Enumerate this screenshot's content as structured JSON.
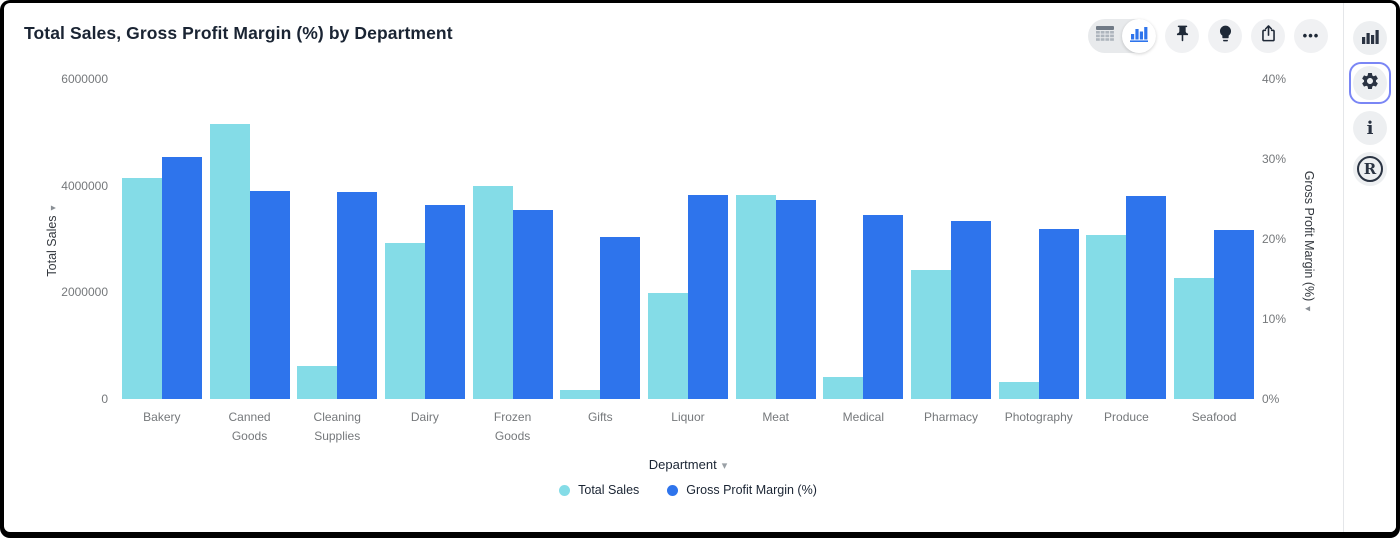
{
  "header": {
    "title": "Total Sales, Gross Profit Margin (%) by Department"
  },
  "toolbar": {
    "view_toggle": {
      "options": [
        "table-view",
        "chart-view"
      ],
      "selected": "chart-view"
    },
    "buttons": [
      "pin",
      "explain",
      "share",
      "more-options"
    ],
    "ellipsis_glyph": "•••"
  },
  "sidebar": {
    "buttons": [
      "chart-panel",
      "settings-panel",
      "info-panel",
      "r-analysis-panel"
    ],
    "selected": "settings-panel",
    "selected_ring_color": "#7A86F5",
    "info_glyph": "i",
    "r_glyph": "R"
  },
  "chart_data": {
    "type": "bar",
    "title": "Total Sales, Gross Profit Margin (%) by Department",
    "categories": [
      "Bakery",
      "Canned Goods",
      "Cleaning Supplies",
      "Dairy",
      "Frozen Goods",
      "Gifts",
      "Liquor",
      "Meat",
      "Medical",
      "Pharmacy",
      "Photography",
      "Produce",
      "Seafood"
    ],
    "series": [
      {
        "name": "Total Sales",
        "axis": "left",
        "color": "#84DCE7",
        "values": [
          4150000,
          5160000,
          620000,
          2930000,
          3990000,
          160000,
          1980000,
          3820000,
          420000,
          2410000,
          320000,
          3070000,
          2260000
        ]
      },
      {
        "name": "Gross Profit Margin (%)",
        "axis": "right",
        "color": "#2E74EC",
        "values": [
          30.3,
          26.0,
          25.9,
          24.3,
          23.6,
          20.2,
          25.5,
          24.9,
          23.0,
          22.3,
          21.2,
          25.4,
          21.1
        ]
      }
    ],
    "xlabel": "Department",
    "ylabel_left": "Total Sales",
    "ylabel_right": "Gross Profit Margin (%)",
    "axis_arrow_glyph": "▾",
    "dropdown_arrow_glyph": "▾",
    "left_axis": {
      "tick_labels": [
        "0",
        "2000000",
        "4000000",
        "6000000"
      ],
      "tick_values": [
        0,
        2000000,
        4000000,
        6000000
      ],
      "min": 0,
      "max": 6000000
    },
    "right_axis": {
      "tick_labels": [
        "0%",
        "10%",
        "20%",
        "30%",
        "40%"
      ],
      "tick_values": [
        0,
        10,
        20,
        30,
        40
      ],
      "min": 0,
      "max": 40
    },
    "grid": false,
    "legend_position": "bottom"
  }
}
